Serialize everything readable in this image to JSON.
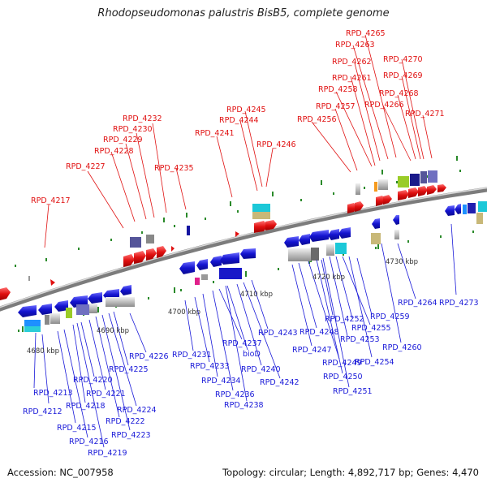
{
  "title": "Rhodopseudomonas palustris BisB5, complete genome",
  "accession": "Accession: NC_007958",
  "summary": "Topology: circular; Length: 4,892,717 bp; Genes: 4,470",
  "colors": {
    "forward": "#e01010",
    "reverse": "#1818d8",
    "backbone": "#8a8a8a",
    "tick": "#2a8a2a"
  },
  "scale_labels": [
    "4680 kbp",
    "4690 kbp",
    "4700 kbp",
    "4710 kbp",
    "4720 kbp",
    "4730 kbp"
  ],
  "forward_genes": [
    "RPD_4217",
    "RPD_4227",
    "RPD_4228",
    "RPD_4229",
    "RPD_4230",
    "RPD_4232",
    "RPD_4235",
    "RPD_4241",
    "RPD_4244",
    "RPD_4245",
    "RPD_4246",
    "RPD_4256",
    "RPD_4257",
    "RPD_4258",
    "RPD_4261",
    "RPD_4262",
    "RPD_4263",
    "RPD_4265",
    "RPD_4266",
    "RPD_4268",
    "RPD_4269",
    "RPD_4270",
    "RPD_4271"
  ],
  "reverse_genes": [
    "RPD_4212",
    "RPD_4213",
    "RPD_4215",
    "RPD_4216",
    "RPD_4218",
    "RPD_4219",
    "RPD_4220",
    "RPD_4221",
    "RPD_4222",
    "RPD_4223",
    "RPD_4224",
    "RPD_4225",
    "RPD_4226",
    "RPD_4231",
    "RPD_4233",
    "RPD_4234",
    "RPD_4236",
    "RPD_4237",
    "bioD",
    "RPD_4238",
    "RPD_4240",
    "RPD_4242",
    "RPD_4243",
    "RPD_4247",
    "RPD_4248",
    "RPD_4249",
    "RPD_4250",
    "RPD_4251",
    "RPD_4252",
    "RPD_4253",
    "RPD_4254",
    "RPD_4255",
    "RPD_4259",
    "RPD_4260",
    "RPD_4264",
    "RPD_4273"
  ]
}
